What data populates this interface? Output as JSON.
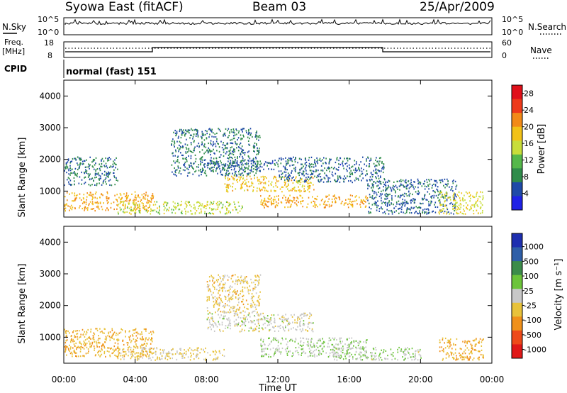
{
  "header": {
    "station": "Syowa East (fitACF)",
    "beam": "Beam 03",
    "date": "25/Apr/2009"
  },
  "panels": {
    "nsky": {
      "left_label": "N.Sky",
      "right_label": "N.Search",
      "left_ticks": [
        "10^5",
        "10^0"
      ],
      "right_ticks": [
        "10^5",
        "10^0"
      ]
    },
    "freq": {
      "left_label_1": "Freq.",
      "left_label_2": "[MHz]",
      "left_ticks": [
        "18",
        "8"
      ],
      "right_label": "Nave",
      "right_ticks": [
        "60",
        "0"
      ]
    },
    "cpid": {
      "label": "CPID",
      "mode": "normal (fast) 151"
    }
  },
  "colors": {
    "power_scale": [
      "#1f22e6",
      "#1f4aa8",
      "#2f8c4a",
      "#55b84a",
      "#c8dd3a",
      "#f2c218",
      "#f28a18",
      "#ee3a1a",
      "#e0101a"
    ],
    "velocity_scale": [
      "#1e2fb0",
      "#2f5fa8",
      "#3c8c4a",
      "#6cc43a",
      "#c8c8c8",
      "#e8c23a",
      "#f0901a",
      "#ee4a1a",
      "#e01818"
    ]
  },
  "chart_data": [
    {
      "type": "heatmap",
      "title": "",
      "ylabel": "Slant Range [km]",
      "xlabel": "",
      "ylim": [
        180,
        4500
      ],
      "xlim": [
        0,
        24
      ],
      "y_ticks": [
        "1000",
        "2000",
        "3000",
        "4000"
      ],
      "x_ticks": [
        "00:00",
        "04:00",
        "08:00",
        "12:00",
        "16:00",
        "20:00",
        "00:00"
      ],
      "colorbar": {
        "label": "Power [dB]",
        "ticks": [
          "4",
          "8",
          "12",
          "16",
          "20",
          "24",
          "28"
        ],
        "range": [
          0,
          30
        ]
      },
      "regions": [
        {
          "t0": 0,
          "t1": 5,
          "r0": 400,
          "r1": 1000,
          "value": 20
        },
        {
          "t0": 0,
          "t1": 3,
          "r0": 1200,
          "r1": 2100,
          "value": 7
        },
        {
          "t0": 3,
          "t1": 10,
          "r0": 300,
          "r1": 700,
          "value": 15
        },
        {
          "t0": 6,
          "t1": 11,
          "r0": 1500,
          "r1": 3000,
          "value": 7
        },
        {
          "t0": 8,
          "t1": 12,
          "r0": 1700,
          "r1": 2000,
          "value": 6
        },
        {
          "t0": 9,
          "t1": 14,
          "r0": 1000,
          "r1": 1500,
          "value": 18
        },
        {
          "t0": 11,
          "t1": 17,
          "r0": 500,
          "r1": 900,
          "value": 20
        },
        {
          "t0": 12,
          "t1": 18,
          "r0": 1300,
          "r1": 2100,
          "value": 6
        },
        {
          "t0": 17,
          "t1": 22,
          "r0": 300,
          "r1": 1400,
          "value": 6
        },
        {
          "t0": 21,
          "t1": 23.5,
          "r0": 300,
          "r1": 1000,
          "value": 16
        }
      ]
    },
    {
      "type": "heatmap",
      "title": "",
      "ylabel": "Slant Range [km]",
      "xlabel": "Time UT",
      "ylim": [
        180,
        4500
      ],
      "xlim": [
        0,
        24
      ],
      "y_ticks": [
        "1000",
        "2000",
        "3000",
        "4000"
      ],
      "x_ticks": [
        "00:00",
        "04:00",
        "08:00",
        "12:00",
        "16:00",
        "20:00",
        "00:00"
      ],
      "colorbar": {
        "label": "Velocity [m s⁻¹]",
        "ticks": [
          "1000",
          "500",
          "100",
          "25",
          "-25",
          "-100",
          "-500",
          "-1000"
        ],
        "range": [
          -1000,
          1000
        ]
      },
      "regions": [
        {
          "t0": 0,
          "t1": 5,
          "r0": 400,
          "r1": 1300,
          "value": -300
        },
        {
          "t0": 3,
          "t1": 9,
          "r0": 300,
          "r1": 700,
          "value": -150
        },
        {
          "t0": 8,
          "t1": 11,
          "r0": 1800,
          "r1": 3000,
          "value": -200
        },
        {
          "t0": 8,
          "t1": 14,
          "r0": 1200,
          "r1": 1800,
          "value": 0
        },
        {
          "t0": 11,
          "t1": 17,
          "r0": 400,
          "r1": 1000,
          "value": 80
        },
        {
          "t0": 15,
          "t1": 20,
          "r0": 300,
          "r1": 700,
          "value": 60
        },
        {
          "t0": 21,
          "t1": 23.5,
          "r0": 300,
          "r1": 1000,
          "value": -300
        }
      ]
    }
  ]
}
